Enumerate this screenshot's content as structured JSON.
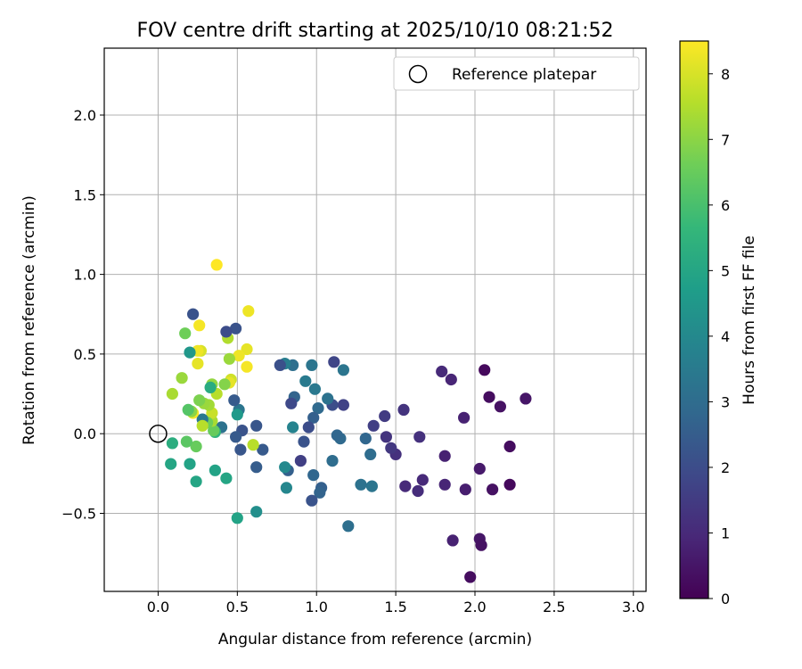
{
  "chart_data": {
    "type": "scatter",
    "title": "FOV centre drift starting at 2025/10/10 08:21:52",
    "xlabel": "Angular distance from reference (arcmin)",
    "ylabel": "Rotation from reference (arcmin)",
    "xlim": [
      -0.34,
      3.08
    ],
    "ylim": [
      -0.99,
      2.42
    ],
    "xticks": [
      0.0,
      0.5,
      1.0,
      1.5,
      2.0,
      2.5,
      3.0
    ],
    "xtick_labels": [
      "0.0",
      "0.5",
      "1.0",
      "1.5",
      "2.0",
      "2.5",
      "3.0"
    ],
    "yticks": [
      -0.5,
      0.0,
      0.5,
      1.0,
      1.5,
      2.0
    ],
    "ytick_labels": [
      "−0.5",
      "0.0",
      "0.5",
      "1.0",
      "1.5",
      "2.0"
    ],
    "grid": true,
    "legend": {
      "position": "top-right",
      "label": "Reference platepar"
    },
    "reference_point": {
      "x": 0.0,
      "y": 0.0
    },
    "colorbar": {
      "label": "Hours from first FF file",
      "range": [
        0,
        8.5
      ],
      "ticks": [
        0,
        1,
        2,
        3,
        4,
        5,
        6,
        7,
        8
      ],
      "tick_labels": [
        "0",
        "1",
        "2",
        "3",
        "4",
        "5",
        "6",
        "7",
        "8"
      ],
      "colormap": "viridis"
    },
    "colors": [
      "#440154",
      "#482878",
      "#3e4989",
      "#31688e",
      "#26828e",
      "#1f9e89",
      "#35b779",
      "#6ece58",
      "#b5de2b",
      "#fde725"
    ],
    "series": [
      {
        "name": "FOV centre drift",
        "points": [
          {
            "x": 2.06,
            "y": 0.4,
            "h": 0.2
          },
          {
            "x": 2.09,
            "y": 0.23,
            "h": 0.3
          },
          {
            "x": 2.16,
            "y": 0.17,
            "h": 0.4
          },
          {
            "x": 2.32,
            "y": 0.22,
            "h": 0.5
          },
          {
            "x": 2.22,
            "y": -0.08,
            "h": 0.3
          },
          {
            "x": 2.22,
            "y": -0.32,
            "h": 0.2
          },
          {
            "x": 2.11,
            "y": -0.35,
            "h": 0.4
          },
          {
            "x": 2.03,
            "y": -0.22,
            "h": 0.6
          },
          {
            "x": 2.03,
            "y": -0.66,
            "h": 0.5
          },
          {
            "x": 2.04,
            "y": -0.7,
            "h": 0.4
          },
          {
            "x": 1.97,
            "y": -0.9,
            "h": 0.3
          },
          {
            "x": 1.94,
            "y": -0.35,
            "h": 0.7
          },
          {
            "x": 1.93,
            "y": 0.1,
            "h": 0.8
          },
          {
            "x": 1.86,
            "y": -0.67,
            "h": 0.8
          },
          {
            "x": 1.85,
            "y": 0.34,
            "h": 0.9
          },
          {
            "x": 1.79,
            "y": 0.39,
            "h": 1.0
          },
          {
            "x": 1.81,
            "y": -0.14,
            "h": 0.8
          },
          {
            "x": 1.81,
            "y": -0.32,
            "h": 0.9
          },
          {
            "x": 1.67,
            "y": -0.29,
            "h": 1.0
          },
          {
            "x": 1.64,
            "y": -0.36,
            "h": 1.1
          },
          {
            "x": 1.65,
            "y": -0.02,
            "h": 1.2
          },
          {
            "x": 1.56,
            "y": -0.33,
            "h": 1.0
          },
          {
            "x": 1.55,
            "y": 0.15,
            "h": 1.3
          },
          {
            "x": 1.5,
            "y": -0.13,
            "h": 1.2
          },
          {
            "x": 1.47,
            "y": -0.09,
            "h": 1.4
          },
          {
            "x": 1.44,
            "y": -0.02,
            "h": 1.3
          },
          {
            "x": 1.43,
            "y": 0.11,
            "h": 1.5
          },
          {
            "x": 1.36,
            "y": 0.05,
            "h": 1.6
          },
          {
            "x": 1.35,
            "y": -0.33,
            "h": 3.3
          },
          {
            "x": 1.34,
            "y": -0.13,
            "h": 3.0
          },
          {
            "x": 1.31,
            "y": -0.03,
            "h": 2.8
          },
          {
            "x": 1.28,
            "y": -0.32,
            "h": 3.2
          },
          {
            "x": 1.2,
            "y": -0.58,
            "h": 3.1
          },
          {
            "x": 1.17,
            "y": 0.4,
            "h": 3.3
          },
          {
            "x": 1.17,
            "y": 0.18,
            "h": 1.7
          },
          {
            "x": 1.15,
            "y": -0.03,
            "h": 2.9
          },
          {
            "x": 1.13,
            "y": -0.01,
            "h": 2.8
          },
          {
            "x": 1.11,
            "y": 0.45,
            "h": 1.8
          },
          {
            "x": 1.1,
            "y": 0.18,
            "h": 2.0
          },
          {
            "x": 1.1,
            "y": -0.17,
            "h": 3.0
          },
          {
            "x": 1.07,
            "y": 0.22,
            "h": 3.2
          },
          {
            "x": 1.03,
            "y": -0.34,
            "h": 2.6
          },
          {
            "x": 1.02,
            "y": -0.37,
            "h": 2.7
          },
          {
            "x": 1.01,
            "y": 0.16,
            "h": 2.9
          },
          {
            "x": 0.99,
            "y": 0.28,
            "h": 3.4
          },
          {
            "x": 0.98,
            "y": 0.1,
            "h": 2.6
          },
          {
            "x": 0.98,
            "y": -0.26,
            "h": 2.8
          },
          {
            "x": 0.97,
            "y": 0.43,
            "h": 3.3
          },
          {
            "x": 0.97,
            "y": -0.42,
            "h": 2.2
          },
          {
            "x": 0.95,
            "y": 0.04,
            "h": 2.0
          },
          {
            "x": 0.93,
            "y": 0.33,
            "h": 3.5
          },
          {
            "x": 0.92,
            "y": -0.05,
            "h": 2.2
          },
          {
            "x": 0.9,
            "y": -0.17,
            "h": 1.6
          },
          {
            "x": 0.86,
            "y": 0.23,
            "h": 2.7
          },
          {
            "x": 0.85,
            "y": 0.43,
            "h": 3.1
          },
          {
            "x": 0.85,
            "y": 0.04,
            "h": 3.8
          },
          {
            "x": 0.84,
            "y": 0.19,
            "h": 1.9
          },
          {
            "x": 0.82,
            "y": -0.23,
            "h": 2.6
          },
          {
            "x": 0.8,
            "y": 0.44,
            "h": 3.6
          },
          {
            "x": 0.81,
            "y": -0.34,
            "h": 3.9
          },
          {
            "x": 0.8,
            "y": -0.21,
            "h": 4.0
          },
          {
            "x": 0.77,
            "y": 0.43,
            "h": 2.1
          },
          {
            "x": 0.66,
            "y": -0.1,
            "h": 2.4
          },
          {
            "x": 0.62,
            "y": 0.05,
            "h": 2.3
          },
          {
            "x": 0.62,
            "y": -0.21,
            "h": 2.5
          },
          {
            "x": 0.62,
            "y": -0.49,
            "h": 4.2
          },
          {
            "x": 0.6,
            "y": -0.07,
            "h": 7.6
          },
          {
            "x": 0.57,
            "y": 0.77,
            "h": 8.3
          },
          {
            "x": 0.56,
            "y": 0.53,
            "h": 8.2
          },
          {
            "x": 0.56,
            "y": 0.42,
            "h": 8.4
          },
          {
            "x": 0.53,
            "y": 0.02,
            "h": 2.2
          },
          {
            "x": 0.52,
            "y": -0.1,
            "h": 2.3
          },
          {
            "x": 0.51,
            "y": 0.49,
            "h": 8.3
          },
          {
            "x": 0.51,
            "y": 0.15,
            "h": 3.3
          },
          {
            "x": 0.5,
            "y": 0.12,
            "h": 4.6
          },
          {
            "x": 0.5,
            "y": -0.53,
            "h": 4.9
          },
          {
            "x": 0.49,
            "y": -0.02,
            "h": 2.4
          },
          {
            "x": 0.49,
            "y": 0.66,
            "h": 2.2
          },
          {
            "x": 0.48,
            "y": 0.21,
            "h": 2.4
          },
          {
            "x": 0.46,
            "y": 0.34,
            "h": 7.9
          },
          {
            "x": 0.45,
            "y": 0.47,
            "h": 7.2
          },
          {
            "x": 0.45,
            "y": 0.32,
            "h": 8.2
          },
          {
            "x": 0.44,
            "y": 0.6,
            "h": 7.5
          },
          {
            "x": 0.43,
            "y": 0.64,
            "h": 2.0
          },
          {
            "x": 0.43,
            "y": -0.28,
            "h": 5.0
          },
          {
            "x": 0.42,
            "y": 0.31,
            "h": 6.9
          },
          {
            "x": 0.4,
            "y": 0.04,
            "h": 3.2
          },
          {
            "x": 0.37,
            "y": 1.06,
            "h": 8.5
          },
          {
            "x": 0.37,
            "y": 0.25,
            "h": 7.6
          },
          {
            "x": 0.36,
            "y": 0.01,
            "h": 5.5
          },
          {
            "x": 0.36,
            "y": -0.23,
            "h": 4.9
          },
          {
            "x": 0.35,
            "y": 0.02,
            "h": 6.5
          },
          {
            "x": 0.34,
            "y": 0.31,
            "h": 7.1
          },
          {
            "x": 0.34,
            "y": 0.08,
            "h": 7.4
          },
          {
            "x": 0.34,
            "y": 0.13,
            "h": 7.8
          },
          {
            "x": 0.33,
            "y": 0.29,
            "h": 5.2
          },
          {
            "x": 0.32,
            "y": 0.18,
            "h": 7.3
          },
          {
            "x": 0.31,
            "y": 0.07,
            "h": 6.6
          },
          {
            "x": 0.29,
            "y": 0.19,
            "h": 7.2
          },
          {
            "x": 0.28,
            "y": 0.09,
            "h": 3.4
          },
          {
            "x": 0.28,
            "y": 0.05,
            "h": 7.6
          },
          {
            "x": 0.27,
            "y": 0.52,
            "h": 8.0
          },
          {
            "x": 0.26,
            "y": 0.68,
            "h": 8.4
          },
          {
            "x": 0.26,
            "y": 0.21,
            "h": 6.8
          },
          {
            "x": 0.25,
            "y": 0.44,
            "h": 8.2
          },
          {
            "x": 0.25,
            "y": 0.52,
            "h": 8.3
          },
          {
            "x": 0.24,
            "y": -0.3,
            "h": 5.0
          },
          {
            "x": 0.24,
            "y": -0.08,
            "h": 6.5
          },
          {
            "x": 0.22,
            "y": 0.75,
            "h": 2.2
          },
          {
            "x": 0.22,
            "y": 0.13,
            "h": 8.4
          },
          {
            "x": 0.21,
            "y": 0.14,
            "h": 7.0
          },
          {
            "x": 0.2,
            "y": -0.19,
            "h": 4.9
          },
          {
            "x": 0.2,
            "y": 0.51,
            "h": 4.5
          },
          {
            "x": 0.19,
            "y": 0.15,
            "h": 6.2
          },
          {
            "x": 0.18,
            "y": -0.05,
            "h": 6.3
          },
          {
            "x": 0.17,
            "y": 0.63,
            "h": 6.6
          },
          {
            "x": 0.15,
            "y": 0.35,
            "h": 7.2
          },
          {
            "x": 0.09,
            "y": 0.25,
            "h": 7.4
          },
          {
            "x": 0.09,
            "y": -0.06,
            "h": 5.3
          },
          {
            "x": 0.08,
            "y": -0.19,
            "h": 5.0
          }
        ]
      }
    ]
  }
}
